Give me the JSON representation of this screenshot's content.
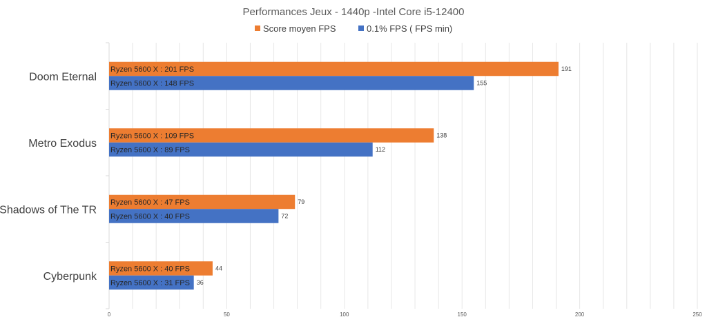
{
  "chart_data": {
    "type": "bar",
    "orientation": "horizontal",
    "title": "Performances Jeux - 1440p -Intel Core i5-12400",
    "categories": [
      "Doom Eternal",
      "Metro Exodus",
      "Shadows of The TR",
      "Cyberpunk"
    ],
    "series": [
      {
        "name": "Score moyen FPS",
        "color": "#ed7d31",
        "values": [
          191,
          138,
          79,
          44
        ],
        "bar_labels": [
          "Ryzen 5600 X : 201 FPS",
          "Ryzen 5600 X : 109 FPS",
          "Ryzen 5600 X : 47 FPS",
          "Ryzen 5600 X : 40 FPS"
        ]
      },
      {
        "name": "0.1% FPS ( FPS min)",
        "color": "#4472c4",
        "values": [
          155,
          112,
          72,
          36
        ],
        "bar_labels": [
          "Ryzen 5600 X : 148 FPS",
          "Ryzen 5600 X : 89 FPS",
          "Ryzen 5600 X : 40 FPS",
          "Ryzen 5600 X : 31 FPS"
        ]
      }
    ],
    "xlim": [
      0,
      250
    ],
    "x_ticks": [
      0,
      50,
      100,
      150,
      200,
      250
    ],
    "grid": true,
    "legend_position": "top"
  }
}
